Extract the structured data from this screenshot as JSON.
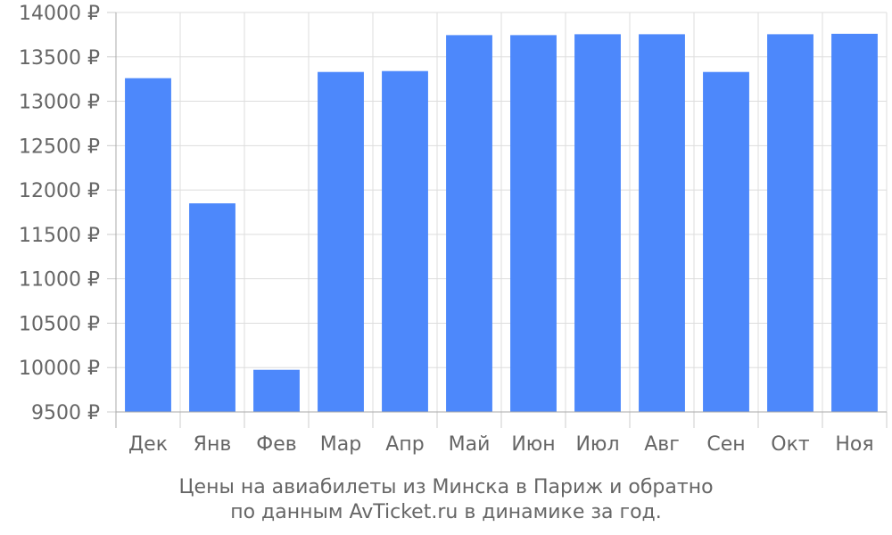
{
  "chart_data": {
    "type": "bar",
    "categories": [
      "Дек",
      "Янв",
      "Фев",
      "Мар",
      "Апр",
      "Май",
      "Июн",
      "Июл",
      "Авг",
      "Сен",
      "Окт",
      "Ноя"
    ],
    "values": [
      13260,
      11850,
      9975,
      13330,
      13340,
      13745,
      13745,
      13755,
      13755,
      13330,
      13755,
      13760
    ],
    "ylim": [
      9500,
      14000
    ],
    "yticks": [
      9500,
      10000,
      10500,
      11000,
      11500,
      12000,
      12500,
      13000,
      13500,
      14000
    ],
    "ytick_suffix": " ₽",
    "grid": true,
    "bar_color": "#4d88fb",
    "caption_line1": "Цены на авиабилеты из Минска в Париж и обратно",
    "caption_line2": "по данным AvTicket.ru в динамике за год."
  }
}
